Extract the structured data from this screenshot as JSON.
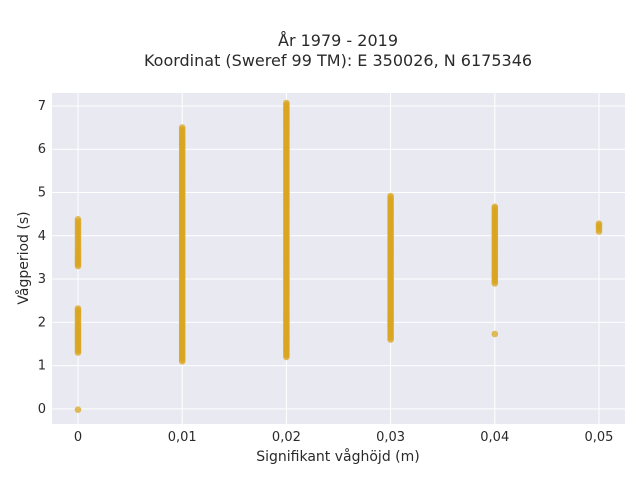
{
  "chart_data": {
    "type": "scatter",
    "title_line1": "År 1979 - 2019",
    "title_line2": "Koordinat (Sweref 99 TM): E 350026, N 6175346",
    "xlabel": "Signifikant våghöjd (m)",
    "ylabel": "Vågperiod (s)",
    "x_ticks": [
      0,
      0.01,
      0.02,
      0.03,
      0.04,
      0.05
    ],
    "x_tick_labels": [
      "0",
      "0,01",
      "0,02",
      "0,03",
      "0,04",
      "0,05"
    ],
    "y_ticks": [
      0,
      1,
      2,
      3,
      4,
      5,
      6,
      7
    ],
    "y_tick_labels": [
      "0",
      "1",
      "2",
      "3",
      "4",
      "5",
      "6",
      "7"
    ],
    "xlim": [
      -0.0025,
      0.0525
    ],
    "ylim": [
      -0.35,
      7.3
    ],
    "grid": true,
    "legend": false,
    "colors": {
      "plot_bg": "#e9e9f2",
      "grid": "#ffffff",
      "marker": "#daa520",
      "text": "#2a2a2a"
    },
    "series": [
      {
        "x": [
          0,
          0,
          0,
          0,
          0,
          0,
          0,
          0,
          0,
          0,
          0,
          0,
          0,
          0,
          0,
          0,
          0,
          0,
          0
        ],
        "y": [
          4.38,
          4.28,
          4.15,
          4.05,
          3.95,
          3.85,
          3.75,
          3.62,
          3.45,
          3.3,
          2.32,
          2.28,
          2.1,
          2.0,
          1.92,
          1.65,
          1.5,
          1.3,
          -0.02
        ]
      },
      {
        "x": [
          0.01,
          0.01,
          0.01,
          0.01,
          0.01,
          0.01,
          0.01,
          0.01,
          0.01,
          0.01,
          0.01,
          0.01,
          0.01,
          0.01,
          0.01,
          0.01,
          0.01,
          0.01,
          0.01
        ],
        "y": [
          6.5,
          6.38,
          6.12,
          5.9,
          5.6,
          5.3,
          5.0,
          4.7,
          4.4,
          4.1,
          3.8,
          3.5,
          3.2,
          2.9,
          2.6,
          2.3,
          2.0,
          1.6,
          1.1
        ]
      },
      {
        "x": [
          0.02,
          0.02,
          0.02,
          0.02,
          0.02,
          0.02,
          0.02,
          0.02,
          0.02,
          0.02,
          0.02,
          0.02,
          0.02,
          0.02,
          0.02,
          0.02,
          0.02,
          0.02,
          0.02,
          0.02
        ],
        "y": [
          7.07,
          6.95,
          6.7,
          6.4,
          6.1,
          5.8,
          5.5,
          5.2,
          4.9,
          4.6,
          4.3,
          4.0,
          3.7,
          3.4,
          3.1,
          2.8,
          2.5,
          2.2,
          1.6,
          1.2
        ]
      },
      {
        "x": [
          0.03,
          0.03,
          0.03,
          0.03,
          0.03,
          0.03,
          0.03,
          0.03,
          0.03,
          0.03,
          0.03,
          0.03,
          0.03,
          0.03
        ],
        "y": [
          4.92,
          4.8,
          4.6,
          4.4,
          4.2,
          4.0,
          3.8,
          3.5,
          3.2,
          2.9,
          2.6,
          2.3,
          1.8,
          1.6
        ]
      },
      {
        "x": [
          0.04,
          0.04,
          0.04,
          0.04,
          0.04,
          0.04,
          0.04,
          0.04,
          0.04,
          0.04,
          0.04
        ],
        "y": [
          4.67,
          4.6,
          4.25,
          4.1,
          3.9,
          3.7,
          3.5,
          3.3,
          3.1,
          2.9,
          1.73
        ]
      },
      {
        "x": [
          0.05,
          0.05,
          0.05
        ],
        "y": [
          4.28,
          4.2,
          4.1
        ]
      }
    ]
  }
}
